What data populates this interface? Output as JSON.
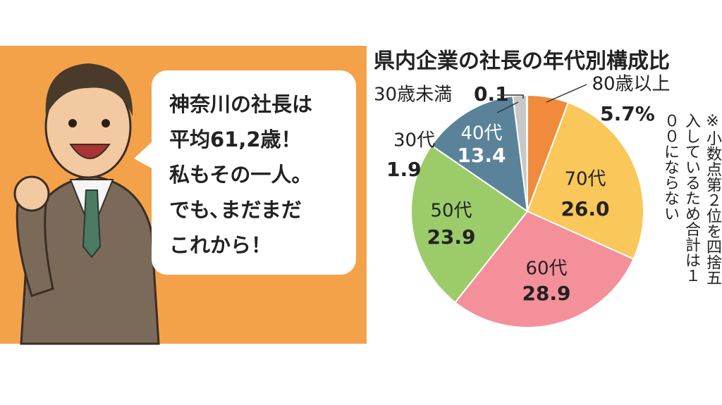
{
  "speech_bubble": {
    "lines": [
      "神奈川の社長は",
      "平均61,2歳！",
      "私もその一人。",
      "でも､まだまだ",
      "これから！"
    ]
  },
  "chart_data": {
    "type": "pie",
    "title": "県内企業の社長の年代別構成比",
    "categories": [
      "80歳以上",
      "70代",
      "60代",
      "50代",
      "40代",
      "30代",
      "30歳未満"
    ],
    "values": [
      5.7,
      26.0,
      28.9,
      23.9,
      13.4,
      1.9,
      0.1
    ],
    "value_labels": [
      "5.7%",
      "26.0",
      "28.9",
      "23.9",
      "13.4",
      "1.9",
      "0.1"
    ],
    "colors": [
      "#f08a3c",
      "#f9c75a",
      "#f4909a",
      "#9ccc6a",
      "#5a8399",
      "#c8c8c8",
      "#e05050"
    ],
    "note": "※小数点第２位を四捨五入しているため合計は１００にならない"
  }
}
